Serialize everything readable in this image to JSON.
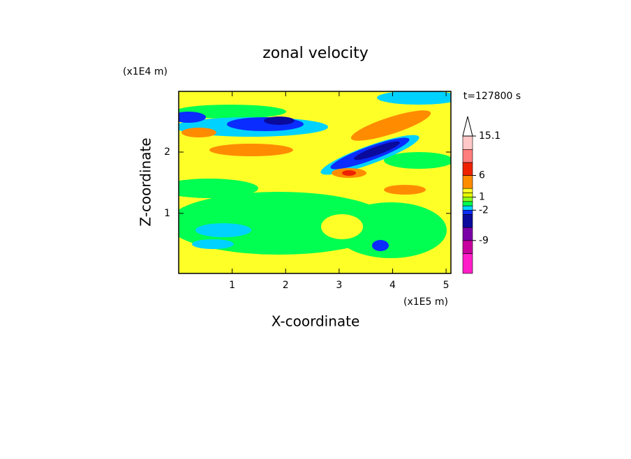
{
  "chart_data": {
    "type": "contour",
    "title": "zonal velocity",
    "x_label": "X-coordinate",
    "y_label": "Z-coordinate",
    "x_unit": "(x1E5 m)",
    "y_unit": "(x1E4 m)",
    "time_label": "t=127800 s",
    "xlim": [
      0,
      5.09
    ],
    "xticks": [
      1,
      2,
      3,
      4,
      5
    ],
    "ylim": [
      0.02,
      2.99
    ],
    "yticks": [
      1,
      2
    ],
    "colorbar": {
      "lim": [
        -16.6,
        15.1
      ],
      "levels": [
        -16.6,
        -12,
        -9,
        -6,
        -3,
        -2,
        -1,
        0,
        1,
        2,
        3,
        6,
        9,
        12,
        15.1
      ],
      "colors": [
        "#ff1ec8",
        "#c8009e",
        "#7a00a8",
        "#0a0a9c",
        "#0a2cff",
        "#00d2ff",
        "#00ff50",
        "#8cff1e",
        "#e6ff00",
        "#ffff28",
        "#ff8c00",
        "#ee2200",
        "#ff7d7d",
        "#ffc8c8"
      ],
      "ticks": [
        15.1,
        6,
        1,
        -2,
        -9
      ]
    }
  }
}
